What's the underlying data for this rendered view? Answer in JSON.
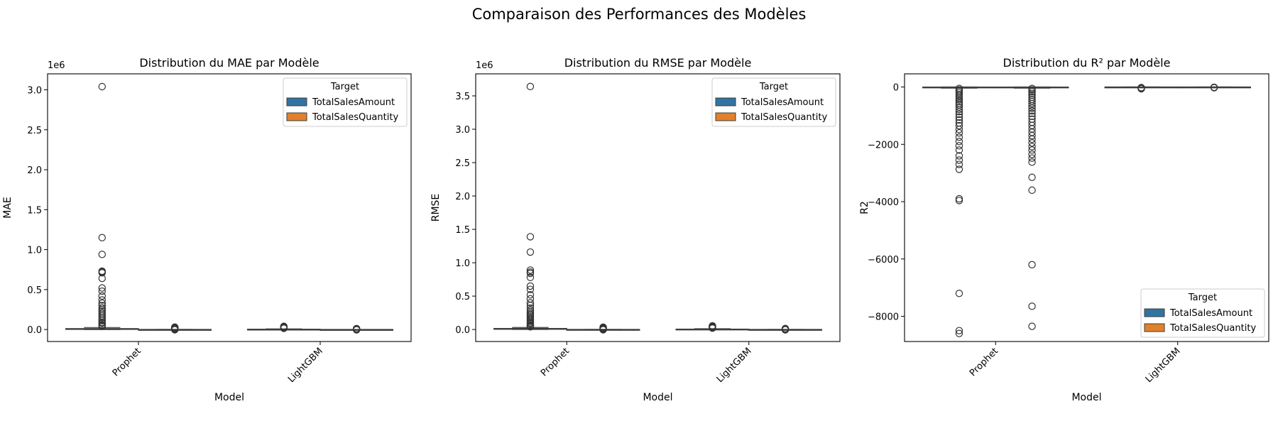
{
  "figure": {
    "suptitle": "Comparaison des Performances des Modèles",
    "colors": {
      "TotalSalesAmount": "#3274a1",
      "TotalSalesQuantity": "#e1812c",
      "outlier_edge": "#333333",
      "box_edge": "#3d3d3d"
    }
  },
  "chart_data": [
    {
      "type": "box",
      "title": "Distribution du MAE par Modèle",
      "xlabel": "Model",
      "ylabel": "MAE",
      "offset_text": "1e6",
      "ylim": [
        -0.15,
        3.2
      ],
      "yticks": [
        0.0,
        0.5,
        1.0,
        1.5,
        2.0,
        2.5,
        3.0
      ],
      "ytick_labels": [
        "0.0",
        "0.5",
        "1.0",
        "1.5",
        "2.0",
        "2.5",
        "3.0"
      ],
      "categories": [
        "Prophet",
        "LightGBM"
      ],
      "legend": {
        "title": "Target",
        "loc": "upper right",
        "entries": [
          "TotalSalesAmount",
          "TotalSalesQuantity"
        ]
      },
      "series": [
        {
          "name": "TotalSalesAmount",
          "boxes": [
            {
              "category": "Prophet",
              "min": 0.0,
              "q1": 0.002,
              "median": 0.005,
              "q3": 0.012,
              "max": 0.025,
              "outliers": [
                3.04,
                1.15,
                0.94,
                0.73,
                0.72,
                0.71,
                0.64,
                0.52,
                0.48,
                0.42,
                0.37,
                0.33,
                0.3,
                0.27,
                0.25,
                0.23,
                0.21,
                0.19,
                0.17,
                0.15,
                0.13,
                0.11,
                0.09,
                0.08,
                0.06,
                0.05,
                0.04
              ]
            },
            {
              "category": "LightGBM",
              "min": 0.0,
              "q1": 0.001,
              "median": 0.002,
              "q3": 0.004,
              "max": 0.008,
              "outliers": [
                0.04,
                0.035,
                0.03,
                0.025,
                0.02,
                0.015
              ]
            }
          ]
        },
        {
          "name": "TotalSalesQuantity",
          "boxes": [
            {
              "category": "Prophet",
              "min": 0.0,
              "q1": 0.0,
              "median": 0.0,
              "q3": 0.0005,
              "max": 0.001,
              "outliers": [
                0.03,
                0.025,
                0.02,
                0.015,
                0.01,
                0.005,
                -0.003
              ]
            },
            {
              "category": "LightGBM",
              "min": 0.0,
              "q1": 0.0,
              "median": 0.0,
              "q3": 0.0002,
              "max": 0.0005,
              "outliers": [
                0.012,
                0.008,
                0.004,
                0.0,
                -0.004
              ]
            }
          ]
        }
      ]
    },
    {
      "type": "box",
      "title": "Distribution du RMSE par Modèle",
      "xlabel": "Model",
      "ylabel": "RMSE",
      "offset_text": "1e6",
      "ylim": [
        -0.18,
        3.83
      ],
      "yticks": [
        0.0,
        0.5,
        1.0,
        1.5,
        2.0,
        2.5,
        3.0,
        3.5
      ],
      "ytick_labels": [
        "0.0",
        "0.5",
        "1.0",
        "1.5",
        "2.0",
        "2.5",
        "3.0",
        "3.5"
      ],
      "categories": [
        "Prophet",
        "LightGBM"
      ],
      "legend": {
        "title": "Target",
        "loc": "upper right",
        "entries": [
          "TotalSalesAmount",
          "TotalSalesQuantity"
        ]
      },
      "series": [
        {
          "name": "TotalSalesAmount",
          "boxes": [
            {
              "category": "Prophet",
              "min": 0.0,
              "q1": 0.003,
              "median": 0.007,
              "q3": 0.016,
              "max": 0.03,
              "outliers": [
                3.64,
                1.39,
                1.16,
                0.89,
                0.86,
                0.84,
                0.78,
                0.65,
                0.6,
                0.52,
                0.46,
                0.4,
                0.36,
                0.32,
                0.29,
                0.26,
                0.24,
                0.22,
                0.2,
                0.18,
                0.16,
                0.14,
                0.12,
                0.1,
                0.09,
                0.07,
                0.06,
                0.05,
                0.04
              ]
            },
            {
              "category": "LightGBM",
              "min": 0.0,
              "q1": 0.001,
              "median": 0.003,
              "q3": 0.006,
              "max": 0.012,
              "outliers": [
                0.055,
                0.045,
                0.04,
                0.033,
                0.026,
                0.02
              ]
            }
          ]
        },
        {
          "name": "TotalSalesQuantity",
          "boxes": [
            {
              "category": "Prophet",
              "min": 0.0,
              "q1": 0.0,
              "median": 0.0,
              "q3": 0.0006,
              "max": 0.0012,
              "outliers": [
                0.035,
                0.028,
                0.022,
                0.016,
                0.01,
                0.004,
                -0.004
              ]
            },
            {
              "category": "LightGBM",
              "min": 0.0,
              "q1": 0.0,
              "median": 0.0,
              "q3": 0.0002,
              "max": 0.0005,
              "outliers": [
                0.014,
                0.009,
                0.004,
                0.0,
                -0.005
              ]
            }
          ]
        }
      ]
    },
    {
      "type": "box",
      "title": "Distribution du R² par Modèle",
      "xlabel": "Model",
      "ylabel": "R2",
      "offset_text": "",
      "ylim": [
        -8880,
        460
      ],
      "yticks": [
        0,
        -2000,
        -4000,
        -6000,
        -8000
      ],
      "ytick_labels": [
        "0",
        "−2000",
        "−4000",
        "−6000",
        "−8000"
      ],
      "categories": [
        "Prophet",
        "LightGBM"
      ],
      "legend": {
        "title": "Target",
        "loc": "lower right",
        "entries": [
          "TotalSalesAmount",
          "TotalSalesQuantity"
        ]
      },
      "series": [
        {
          "name": "TotalSalesAmount",
          "boxes": [
            {
              "category": "Prophet",
              "min": -40,
              "q1": -10,
              "median": -3,
              "q3": 0,
              "max": 1,
              "outliers": [
                -50,
                -100,
                -150,
                -200,
                -260,
                -320,
                -380,
                -440,
                -500,
                -560,
                -620,
                -700,
                -780,
                -860,
                -950,
                -1050,
                -1150,
                -1250,
                -1350,
                -1480,
                -1600,
                -1750,
                -1900,
                -2050,
                -2200,
                -2400,
                -2550,
                -2700,
                -2870,
                -3900,
                -3960,
                -7200,
                -8500,
                -8600
              ]
            },
            {
              "category": "LightGBM",
              "min": -5,
              "q1": -1,
              "median": 0,
              "q3": 0.5,
              "max": 1,
              "outliers": [
                -20,
                -40,
                -60
              ]
            }
          ]
        },
        {
          "name": "TotalSalesQuantity",
          "boxes": [
            {
              "category": "Prophet",
              "min": -40,
              "q1": -10,
              "median": -3,
              "q3": 0,
              "max": 1,
              "outliers": [
                -50,
                -100,
                -160,
                -220,
                -290,
                -360,
                -430,
                -500,
                -580,
                -660,
                -740,
                -830,
                -920,
                -1020,
                -1120,
                -1230,
                -1340,
                -1460,
                -1580,
                -1700,
                -1820,
                -1950,
                -2080,
                -2200,
                -2350,
                -2480,
                -2620,
                -3150,
                -3600,
                -6200,
                -7650,
                -8350
              ]
            },
            {
              "category": "LightGBM",
              "min": -5,
              "q1": -1,
              "median": 0,
              "q3": 0.5,
              "max": 1,
              "outliers": [
                -10,
                -25
              ]
            }
          ]
        }
      ]
    }
  ]
}
